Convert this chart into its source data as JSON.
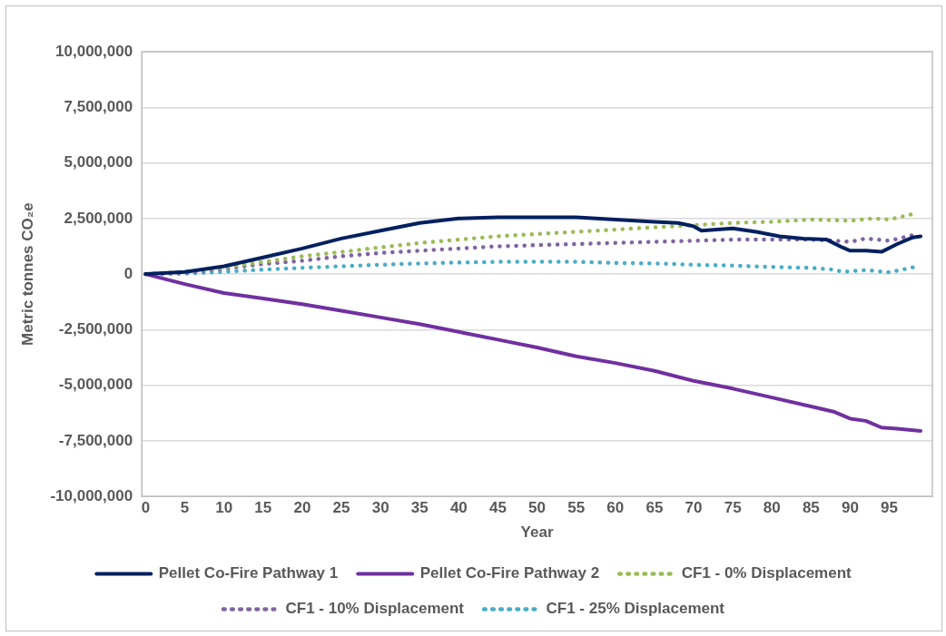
{
  "chart_data": {
    "type": "line",
    "xlabel": "Year",
    "ylabel": "Metric tonnes CO₂e",
    "xlim": [
      -0.5,
      100.5
    ],
    "xticks": [
      0,
      5,
      10,
      15,
      20,
      25,
      30,
      35,
      40,
      45,
      50,
      55,
      60,
      65,
      70,
      75,
      80,
      85,
      90,
      95
    ],
    "ylim": [
      -10000000,
      10000000
    ],
    "yticks": [
      {
        "value": -10000000,
        "label": "-10,000,000"
      },
      {
        "value": -7500000,
        "label": "-7,500,000"
      },
      {
        "value": -5000000,
        "label": "-5,000,000"
      },
      {
        "value": -2500000,
        "label": "-2,500,000"
      },
      {
        "value": 0,
        "label": "0"
      },
      {
        "value": 2500000,
        "label": "2,500,000"
      },
      {
        "value": 5000000,
        "label": "5,000,000"
      },
      {
        "value": 7500000,
        "label": "7,500,000"
      },
      {
        "value": 10000000,
        "label": "10,000,000"
      }
    ],
    "grid": "y",
    "legend": "bottom",
    "marker": "none",
    "series": [
      {
        "name": "Pellet Co-Fire Pathway 1",
        "color": "#002060",
        "line_style": "solid",
        "x": [
          0,
          5,
          10,
          15,
          20,
          25,
          30,
          35,
          40,
          45,
          50,
          55,
          60,
          65,
          68,
          70,
          71,
          73,
          75,
          78,
          81,
          84,
          87,
          89,
          90,
          92,
          94,
          96,
          98,
          99
        ],
        "values": [
          0,
          100000,
          350000,
          750000,
          1150000,
          1600000,
          1950000,
          2300000,
          2500000,
          2550000,
          2550000,
          2550000,
          2450000,
          2350000,
          2300000,
          2150000,
          1950000,
          2000000,
          2050000,
          1900000,
          1700000,
          1600000,
          1550000,
          1200000,
          1050000,
          1050000,
          1000000,
          1350000,
          1650000,
          1700000
        ]
      },
      {
        "name": "Pellet Co-Fire Pathway 2",
        "color": "#7030a0",
        "line_style": "solid",
        "x": [
          0,
          5,
          10,
          15,
          20,
          25,
          30,
          35,
          40,
          45,
          50,
          55,
          60,
          65,
          70,
          75,
          80,
          85,
          88,
          90,
          92,
          94,
          96,
          99
        ],
        "values": [
          0,
          -450000,
          -850000,
          -1100000,
          -1350000,
          -1650000,
          -1950000,
          -2250000,
          -2600000,
          -2950000,
          -3300000,
          -3700000,
          -4000000,
          -4350000,
          -4800000,
          -5150000,
          -5550000,
          -5950000,
          -6200000,
          -6500000,
          -6600000,
          -6900000,
          -6950000,
          -7050000
        ]
      },
      {
        "name": "CF1 - 0% Displacement",
        "color": "#9bbb59",
        "line_style": "dotted",
        "x": [
          0,
          5,
          10,
          15,
          20,
          25,
          30,
          35,
          40,
          45,
          50,
          55,
          60,
          65,
          70,
          75,
          80,
          85,
          90,
          93,
          95,
          98
        ],
        "values": [
          0,
          100000,
          300000,
          550000,
          800000,
          1000000,
          1200000,
          1400000,
          1550000,
          1700000,
          1800000,
          1900000,
          2000000,
          2100000,
          2200000,
          2300000,
          2350000,
          2450000,
          2400000,
          2500000,
          2450000,
          2700000
        ]
      },
      {
        "name": "CF1 - 10% Displacement",
        "color": "#8064a2",
        "line_style": "dotted",
        "x": [
          0,
          5,
          10,
          15,
          20,
          25,
          30,
          35,
          40,
          45,
          50,
          55,
          60,
          65,
          70,
          75,
          80,
          85,
          88,
          90,
          92,
          95,
          98
        ],
        "values": [
          0,
          50000,
          250000,
          450000,
          600000,
          800000,
          950000,
          1050000,
          1150000,
          1250000,
          1300000,
          1350000,
          1400000,
          1450000,
          1500000,
          1550000,
          1550000,
          1550000,
          1500000,
          1450000,
          1600000,
          1500000,
          1750000
        ]
      },
      {
        "name": "CF1 - 25% Displacement",
        "color": "#4bacc6",
        "line_style": "dotted",
        "x": [
          0,
          5,
          10,
          15,
          20,
          25,
          30,
          35,
          40,
          45,
          50,
          55,
          60,
          65,
          70,
          75,
          80,
          85,
          88,
          89,
          92,
          95,
          98
        ],
        "values": [
          0,
          20000,
          100000,
          200000,
          280000,
          350000,
          420000,
          480000,
          520000,
          550000,
          550000,
          550000,
          500000,
          480000,
          420000,
          380000,
          320000,
          280000,
          200000,
          100000,
          180000,
          80000,
          300000
        ]
      }
    ]
  }
}
